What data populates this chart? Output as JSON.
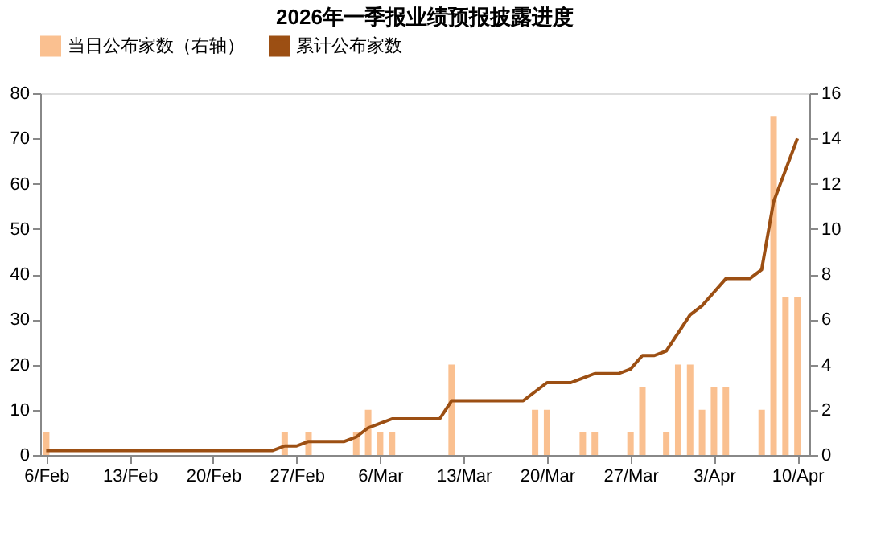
{
  "chart_data": {
    "type": "line",
    "title": "2026年一季报业绩预报披露进度",
    "legend": "top",
    "grid": false,
    "xlim": [
      "2026-02-05T12:00",
      "2026-04-11"
    ],
    "xticks": [
      {
        "value": "2026-02-06",
        "label": "6/Feb"
      },
      {
        "value": "2026-02-13",
        "label": "13/Feb"
      },
      {
        "value": "2026-02-20",
        "label": "20/Feb"
      },
      {
        "value": "2026-02-27",
        "label": "27/Feb"
      },
      {
        "value": "2026-03-06",
        "label": "6/Mar"
      },
      {
        "value": "2026-03-13",
        "label": "13/Mar"
      },
      {
        "value": "2026-03-20",
        "label": "20/Mar"
      },
      {
        "value": "2026-03-27",
        "label": "27/Mar"
      },
      {
        "value": "2026-04-03",
        "label": "3/Apr"
      },
      {
        "value": "2026-04-10",
        "label": "10/Apr"
      }
    ],
    "ylim": [
      0,
      80
    ],
    "yticks": [
      0,
      10,
      20,
      30,
      40,
      50,
      60,
      70,
      80
    ],
    "y2lim": [
      0,
      16
    ],
    "y2ticks": [
      0,
      2,
      4,
      6,
      8,
      10,
      12,
      14,
      16
    ],
    "series": [
      {
        "name": "当日公布家数（右轴）",
        "type": "bar",
        "axis": "y2",
        "color": "#fac090",
        "x": [
          "2026-02-06",
          "2026-02-26",
          "2026-02-28",
          "2026-03-04",
          "2026-03-05",
          "2026-03-06",
          "2026-03-07",
          "2026-03-12",
          "2026-03-19",
          "2026-03-20",
          "2026-03-23",
          "2026-03-24",
          "2026-03-27",
          "2026-03-28",
          "2026-03-30",
          "2026-03-31",
          "2026-04-01",
          "2026-04-02",
          "2026-04-03",
          "2026-04-04",
          "2026-04-07",
          "2026-04-08",
          "2026-04-09",
          "2026-04-10"
        ],
        "values": [
          1,
          1,
          1,
          1,
          2,
          1,
          1,
          4,
          2,
          2,
          1,
          1,
          1,
          3,
          1,
          4,
          4,
          2,
          3,
          3,
          2,
          15,
          7,
          7
        ]
      },
      {
        "name": "累计公布家数",
        "color": "#9c4f13",
        "x": [
          "2026-02-06",
          "2026-02-07",
          "2026-02-08",
          "2026-02-09",
          "2026-02-10",
          "2026-02-11",
          "2026-02-12",
          "2026-02-13",
          "2026-02-14",
          "2026-02-15",
          "2026-02-16",
          "2026-02-17",
          "2026-02-18",
          "2026-02-19",
          "2026-02-20",
          "2026-02-21",
          "2026-02-22",
          "2026-02-23",
          "2026-02-24",
          "2026-02-25",
          "2026-02-26",
          "2026-02-27",
          "2026-02-28",
          "2026-03-01",
          "2026-03-02",
          "2026-03-03",
          "2026-03-04",
          "2026-03-05",
          "2026-03-06",
          "2026-03-07",
          "2026-03-08",
          "2026-03-09",
          "2026-03-10",
          "2026-03-11",
          "2026-03-12",
          "2026-03-13",
          "2026-03-14",
          "2026-03-15",
          "2026-03-16",
          "2026-03-17",
          "2026-03-18",
          "2026-03-19",
          "2026-03-20",
          "2026-03-21",
          "2026-03-22",
          "2026-03-23",
          "2026-03-24",
          "2026-03-25",
          "2026-03-26",
          "2026-03-27",
          "2026-03-28",
          "2026-03-29",
          "2026-03-30",
          "2026-03-31",
          "2026-04-01",
          "2026-04-02",
          "2026-04-03",
          "2026-04-04",
          "2026-04-05",
          "2026-04-06",
          "2026-04-07",
          "2026-04-08",
          "2026-04-09",
          "2026-04-10"
        ],
        "values": [
          1,
          1,
          1,
          1,
          1,
          1,
          1,
          1,
          1,
          1,
          1,
          1,
          1,
          1,
          1,
          1,
          1,
          1,
          1,
          1,
          2,
          2,
          3,
          3,
          3,
          3,
          4,
          6,
          7,
          8,
          8,
          8,
          8,
          8,
          12,
          12,
          12,
          12,
          12,
          12,
          12,
          14,
          16,
          16,
          16,
          17,
          18,
          18,
          18,
          19,
          22,
          22,
          23,
          27,
          31,
          33,
          36,
          39,
          39,
          39,
          41,
          56,
          63,
          70
        ]
      }
    ]
  }
}
